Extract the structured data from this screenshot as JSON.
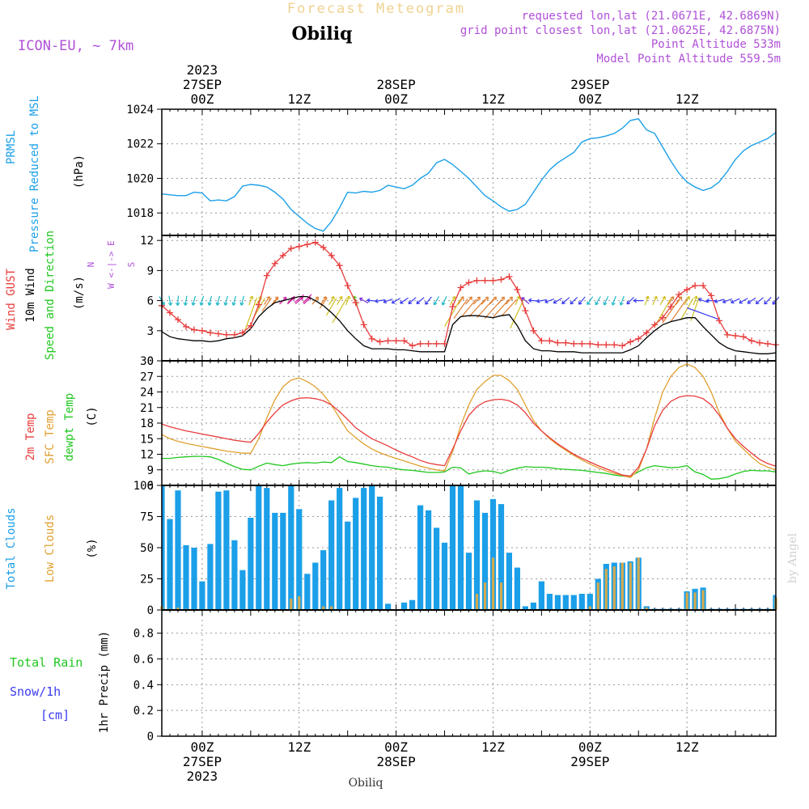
{
  "header": {
    "product_title": "Forecast Meteogram",
    "location": "Obiliq",
    "model": "ICON-EU, ~ 7km",
    "requested": "requested lon,lat (21.0671E, 42.6869N)",
    "grid_point": "grid point closest lon,lat (21.0625E, 42.6875N)",
    "point_altitude": "Point Altitude 533m",
    "model_altitude": "Model Point Altitude 559.5m",
    "footer_location": "Obiliq",
    "credit": "by Angel"
  },
  "time_axis": {
    "top_labels": [
      {
        "h": 0,
        "lines": [
          "2023",
          "27SEP",
          "00Z"
        ]
      },
      {
        "h": 12,
        "lines": [
          "12Z"
        ]
      },
      {
        "h": 24,
        "lines": [
          "28SEP",
          "00Z"
        ]
      },
      {
        "h": 36,
        "lines": [
          "12Z"
        ]
      },
      {
        "h": 48,
        "lines": [
          "29SEP",
          "00Z"
        ]
      },
      {
        "h": 60,
        "lines": [
          "12Z"
        ]
      }
    ],
    "bottom_labels": [
      {
        "h": 0,
        "lines": [
          "00Z",
          "27SEP",
          "2023"
        ]
      },
      {
        "h": 12,
        "lines": [
          "12Z"
        ]
      },
      {
        "h": 24,
        "lines": [
          "00Z",
          "28SEP"
        ]
      },
      {
        "h": 36,
        "lines": [
          "12Z"
        ]
      },
      {
        "h": 48,
        "lines": [
          "00Z",
          "29SEP"
        ]
      },
      {
        "h": 60,
        "lines": [
          "12Z"
        ]
      }
    ],
    "range_hours": [
      -5,
      71
    ]
  },
  "colors": {
    "pressure": "#1b9fe8",
    "gust": "#e83c3c",
    "wind": "#000000",
    "temp": "#e83c3c",
    "sfc": "#e0a030",
    "dew": "#20c820",
    "clouds_total": "#1b9fe8",
    "clouds_low": "#d2aa50",
    "rain": "#20c820",
    "snow": "#3c3cf0",
    "label_purple": "#b050d8"
  },
  "chart_data": [
    {
      "type": "line",
      "name": "pressure",
      "ylabel": [
        "PRMSL",
        "Pressure Reduced to MSL",
        "(hPa)"
      ],
      "ylim": [
        1016.7,
        1024
      ],
      "yticks": [
        1018,
        1020,
        1022,
        1024
      ],
      "x": [
        -5,
        -4,
        -3,
        -2,
        -1,
        0,
        1,
        2,
        3,
        4,
        5,
        6,
        7,
        8,
        9,
        10,
        11,
        12,
        13,
        14,
        15,
        16,
        17,
        18,
        19,
        20,
        21,
        22,
        23,
        24,
        25,
        26,
        27,
        28,
        29,
        30,
        31,
        32,
        33,
        34,
        35,
        36,
        37,
        38,
        39,
        40,
        41,
        42,
        43,
        44,
        45,
        46,
        47,
        48,
        49,
        50,
        51,
        52,
        53,
        54,
        55,
        56,
        57,
        58,
        59,
        60,
        61,
        62,
        63,
        64,
        65,
        66,
        67,
        68,
        69,
        70,
        71
      ],
      "values": [
        1019.1,
        1019.05,
        1019.0,
        1019.0,
        1019.2,
        1019.15,
        1018.7,
        1018.75,
        1018.7,
        1018.95,
        1019.55,
        1019.65,
        1019.6,
        1019.5,
        1019.2,
        1018.8,
        1018.2,
        1017.8,
        1017.4,
        1017.1,
        1016.95,
        1017.5,
        1018.3,
        1019.2,
        1019.15,
        1019.25,
        1019.2,
        1019.3,
        1019.6,
        1019.5,
        1019.4,
        1019.6,
        1020.0,
        1020.3,
        1020.9,
        1021.1,
        1020.8,
        1020.4,
        1020.0,
        1019.5,
        1019.0,
        1018.7,
        1018.35,
        1018.1,
        1018.2,
        1018.5,
        1019.2,
        1019.9,
        1020.5,
        1020.9,
        1021.2,
        1021.5,
        1022.1,
        1022.3,
        1022.35,
        1022.45,
        1022.6,
        1022.9,
        1023.35,
        1023.45,
        1022.8,
        1022.6,
        1021.8,
        1021.0,
        1020.3,
        1019.8,
        1019.5,
        1019.3,
        1019.45,
        1019.8,
        1020.4,
        1021.1,
        1021.6,
        1021.9,
        1022.1,
        1022.3,
        1022.65
      ]
    },
    {
      "type": "line",
      "name": "wind",
      "ylabel": [
        "Wind GUST",
        "10m Wind",
        "Speed and Direction",
        "(m/s)"
      ],
      "compass": [
        "N",
        "W <-|-> E",
        "S"
      ],
      "ylim": [
        0,
        12.5
      ],
      "yticks": [
        0,
        3,
        6,
        9,
        12
      ],
      "x": [
        -5,
        -4,
        -3,
        -2,
        -1,
        0,
        1,
        2,
        3,
        4,
        5,
        6,
        7,
        8,
        9,
        10,
        11,
        12,
        13,
        14,
        15,
        16,
        17,
        18,
        19,
        20,
        21,
        22,
        23,
        24,
        25,
        26,
        27,
        28,
        29,
        30,
        31,
        32,
        33,
        34,
        35,
        36,
        37,
        38,
        39,
        40,
        41,
        42,
        43,
        44,
        45,
        46,
        47,
        48,
        49,
        50,
        51,
        52,
        53,
        54,
        55,
        56,
        57,
        58,
        59,
        60,
        61,
        62,
        63,
        64,
        65,
        66,
        67,
        68,
        69,
        70,
        71
      ],
      "gust": [
        5.5,
        4.8,
        4.1,
        3.4,
        3.1,
        3.0,
        2.8,
        2.7,
        2.6,
        2.6,
        2.8,
        3.5,
        5.6,
        8.5,
        9.7,
        10.5,
        11.2,
        11.4,
        11.6,
        11.8,
        11.3,
        10.5,
        9.5,
        7.5,
        5.8,
        3.6,
        2.2,
        1.9,
        2.0,
        2.0,
        2.0,
        1.5,
        1.7,
        1.7,
        1.7,
        1.7,
        5.4,
        7.3,
        7.8,
        8.0,
        8.0,
        8.0,
        8.1,
        8.4,
        7.1,
        5.0,
        3.0,
        2.0,
        2.0,
        1.8,
        1.8,
        1.7,
        1.7,
        1.7,
        1.6,
        1.6,
        1.6,
        1.5,
        1.9,
        2.2,
        2.8,
        3.6,
        4.3,
        5.4,
        6.6,
        7.1,
        7.5,
        7.5,
        6.5,
        4.0,
        2.6,
        2.5,
        2.4,
        2.0,
        1.8,
        1.7,
        1.6
      ],
      "speed": [
        2.9,
        2.4,
        2.2,
        2.1,
        2.0,
        2.0,
        1.9,
        2.0,
        2.2,
        2.3,
        2.5,
        3.2,
        4.4,
        5.2,
        5.8,
        6.0,
        6.2,
        6.4,
        6.4,
        6.0,
        5.5,
        4.8,
        4.0,
        3.0,
        2.2,
        1.5,
        1.2,
        1.2,
        1.2,
        1.1,
        1.1,
        1.0,
        0.9,
        0.9,
        0.9,
        0.9,
        3.6,
        4.4,
        4.5,
        4.5,
        4.4,
        4.3,
        4.5,
        4.6,
        3.5,
        2.0,
        1.2,
        1.0,
        1.0,
        0.9,
        0.9,
        0.9,
        0.8,
        0.8,
        0.8,
        0.8,
        0.8,
        0.8,
        1.1,
        1.5,
        2.3,
        3.0,
        3.6,
        3.9,
        4.1,
        4.3,
        4.3,
        3.4,
        2.6,
        1.8,
        1.3,
        1.0,
        0.9,
        0.8,
        0.7,
        0.7,
        0.8
      ],
      "direction": [
        330,
        350,
        5,
        10,
        15,
        15,
        15,
        15,
        15,
        15,
        15,
        200,
        210,
        215,
        220,
        225,
        225,
        230,
        225,
        220,
        215,
        210,
        210,
        200,
        160,
        120,
        95,
        80,
        70,
        60,
        55,
        50,
        50,
        40,
        30,
        25,
        210,
        215,
        220,
        222,
        222,
        222,
        222,
        222,
        205,
        130,
        95,
        80,
        70,
        60,
        50,
        45,
        40,
        35,
        30,
        25,
        20,
        20,
        45,
        90,
        200,
        205,
        210,
        215,
        215,
        210,
        200,
        110,
        90,
        75,
        70,
        65,
        60,
        55,
        50,
        45,
        40
      ]
    },
    {
      "type": "line",
      "name": "temperature",
      "ylabel": [
        "2m Temp",
        "SFC Temp",
        "dewpt Temp",
        "(C)"
      ],
      "ylim": [
        6,
        30
      ],
      "yticks": [
        6,
        9,
        12,
        15,
        18,
        21,
        24,
        27,
        30
      ],
      "x": [
        -5,
        -4,
        -3,
        -2,
        -1,
        0,
        1,
        2,
        3,
        4,
        5,
        6,
        7,
        8,
        9,
        10,
        11,
        12,
        13,
        14,
        15,
        16,
        17,
        18,
        19,
        20,
        21,
        22,
        23,
        24,
        25,
        26,
        27,
        28,
        29,
        30,
        31,
        32,
        33,
        34,
        35,
        36,
        37,
        38,
        39,
        40,
        41,
        42,
        43,
        44,
        45,
        46,
        47,
        48,
        49,
        50,
        51,
        52,
        53,
        54,
        55,
        56,
        57,
        58,
        59,
        60,
        61,
        62,
        63,
        64,
        65,
        66,
        67,
        68,
        69,
        70,
        71
      ],
      "t2m": [
        17.8,
        17.3,
        16.9,
        16.5,
        16.2,
        15.9,
        15.6,
        15.3,
        15.0,
        14.7,
        14.5,
        14.3,
        16.0,
        18.2,
        20.0,
        21.5,
        22.3,
        22.8,
        22.9,
        22.7,
        22.3,
        21.5,
        20.2,
        18.7,
        17.1,
        16.0,
        15.0,
        14.3,
        13.6,
        12.8,
        12.1,
        11.5,
        10.8,
        10.3,
        10.0,
        9.8,
        13.0,
        16.5,
        19.5,
        21.2,
        22.1,
        22.5,
        22.6,
        22.3,
        21.5,
        20.0,
        18.0,
        16.5,
        15.2,
        14.0,
        13.0,
        12.0,
        11.2,
        10.5,
        9.8,
        9.2,
        8.6,
        8.0,
        7.8,
        9.5,
        13.0,
        17.5,
        20.5,
        22.2,
        23.0,
        23.3,
        23.2,
        22.7,
        21.5,
        19.5,
        17.0,
        15.0,
        13.5,
        12.2,
        11.0,
        10.2,
        9.7
      ],
      "sfc": [
        15.8,
        15.0,
        14.5,
        14.1,
        13.8,
        13.5,
        13.2,
        12.9,
        12.6,
        12.4,
        12.2,
        12.2,
        15.0,
        19.0,
        22.5,
        25.0,
        26.3,
        26.7,
        26.0,
        25.0,
        23.5,
        21.5,
        19.0,
        16.5,
        15.2,
        14.0,
        13.0,
        12.3,
        11.7,
        11.2,
        10.7,
        10.2,
        9.7,
        9.3,
        9.0,
        8.8,
        12.5,
        17.5,
        21.5,
        24.5,
        26.0,
        27.2,
        27.2,
        26.2,
        24.5,
        21.5,
        18.5,
        16.5,
        15.0,
        13.8,
        12.8,
        11.8,
        10.9,
        10.1,
        9.4,
        8.8,
        8.3,
        7.9,
        7.5,
        9.0,
        13.0,
        19.0,
        24.0,
        27.0,
        28.7,
        29.4,
        28.7,
        27.0,
        24.0,
        20.0,
        17.0,
        14.5,
        13.0,
        11.5,
        10.2,
        9.5,
        9.0
      ],
      "dew": [
        11.2,
        11.2,
        11.4,
        11.5,
        11.6,
        11.6,
        11.5,
        11.0,
        10.3,
        9.6,
        9.1,
        9.0,
        9.7,
        10.3,
        10.0,
        9.8,
        10.1,
        10.3,
        10.4,
        10.3,
        10.5,
        10.4,
        11.5,
        10.6,
        10.4,
        10.1,
        9.8,
        9.6,
        9.5,
        9.2,
        9.0,
        8.9,
        8.7,
        8.5,
        8.5,
        8.6,
        9.5,
        9.4,
        8.2,
        8.6,
        8.8,
        8.7,
        8.3,
        8.9,
        9.3,
        9.6,
        9.5,
        9.5,
        9.4,
        9.2,
        9.1,
        9.0,
        8.9,
        8.7,
        8.5,
        8.3,
        8.0,
        7.8,
        7.8,
        8.6,
        9.4,
        9.8,
        9.6,
        9.4,
        9.5,
        9.8,
        8.6,
        8.1,
        7.2,
        7.3,
        7.6,
        8.2,
        8.7,
        8.9,
        8.8,
        8.8,
        8.6
      ]
    },
    {
      "type": "bar",
      "name": "clouds",
      "ylabel": [
        "Total Clouds",
        "Low Clouds",
        "(%)"
      ],
      "ylim": [
        0,
        100
      ],
      "yticks": [
        0,
        25,
        50,
        75,
        100
      ],
      "x": [
        -5,
        -4,
        -3,
        -2,
        -1,
        0,
        1,
        2,
        3,
        4,
        5,
        6,
        7,
        8,
        9,
        10,
        11,
        12,
        13,
        14,
        15,
        16,
        17,
        18,
        19,
        20,
        21,
        22,
        23,
        24,
        25,
        26,
        27,
        28,
        29,
        30,
        31,
        32,
        33,
        34,
        35,
        36,
        37,
        38,
        39,
        40,
        41,
        42,
        43,
        44,
        45,
        46,
        47,
        48,
        49,
        50,
        51,
        52,
        53,
        54,
        55,
        56,
        57,
        58,
        59,
        60,
        61,
        62,
        63,
        64,
        65,
        66,
        67,
        68,
        69,
        70,
        71
      ],
      "total": [
        100,
        73,
        96,
        52,
        50,
        23,
        53,
        95,
        96,
        56,
        32,
        74,
        100,
        98,
        78,
        78,
        100,
        81,
        29,
        38,
        48,
        88,
        98,
        71,
        90,
        98,
        100,
        91,
        5,
        0,
        6,
        8,
        84,
        80,
        66,
        54,
        100,
        100,
        46,
        88,
        78,
        89,
        85,
        46,
        34,
        3,
        6,
        23,
        13,
        12,
        12,
        12,
        13,
        13,
        25,
        37,
        38,
        38,
        39,
        42,
        3,
        1,
        1,
        1,
        1,
        15,
        17,
        18,
        1,
        1,
        1,
        1,
        1,
        1,
        1,
        1,
        12
      ],
      "low": [
        3,
        1,
        2,
        1,
        0,
        0,
        0,
        0,
        0,
        0,
        0,
        0,
        0,
        0,
        0,
        0,
        9,
        11,
        0,
        0,
        3,
        3,
        0,
        0,
        0,
        0,
        0,
        0,
        0,
        0,
        0,
        0,
        0,
        0,
        0,
        0,
        0,
        0,
        0,
        13,
        22,
        42,
        22,
        0,
        0,
        0,
        0,
        0,
        0,
        0,
        0,
        0,
        0,
        3,
        22,
        33,
        35,
        38,
        38,
        42,
        2,
        0,
        0,
        0,
        0,
        14,
        14,
        16,
        0,
        0,
        0,
        0,
        0,
        0,
        0,
        0,
        10
      ]
    },
    {
      "type": "bar",
      "name": "precipitation",
      "ylabel": [
        "Total Rain",
        "Snow/1h",
        "[cm]",
        "1hr Precip (mm)"
      ],
      "ylim": [
        0,
        0.98
      ],
      "yticks": [
        0,
        0.2,
        0.4,
        0.6,
        0.8
      ],
      "x": [
        -5,
        71
      ],
      "rain": [
        0,
        0
      ],
      "snow": [
        0,
        0
      ]
    }
  ]
}
